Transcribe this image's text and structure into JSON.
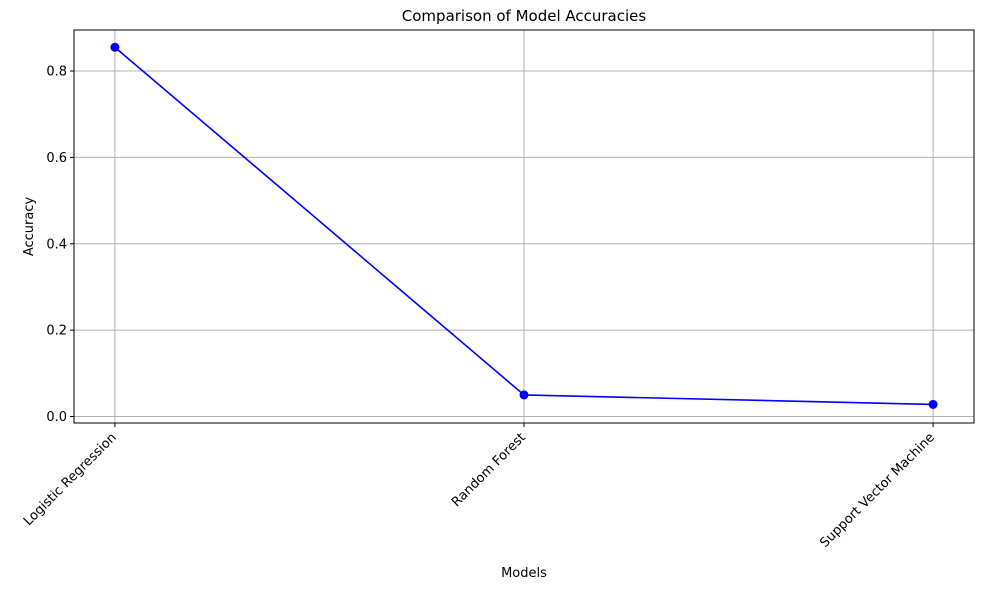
{
  "chart_data": {
    "type": "line",
    "title": "Comparison of Model Accuracies",
    "xlabel": "Models",
    "ylabel": "Accuracy",
    "categories": [
      "Logistic Regression",
      "Random Forest",
      "Support Vector Machine"
    ],
    "series": [
      {
        "values": [
          0.855,
          0.05,
          0.028
        ],
        "color": "#0000ff",
        "marker": "circle"
      }
    ],
    "ylim": [
      -0.015,
      0.895
    ],
    "yticks": [
      0.0,
      0.2,
      0.4,
      0.6,
      0.8
    ],
    "ytick_labels": [
      "0.0",
      "0.2",
      "0.4",
      "0.6",
      "0.8"
    ],
    "grid": true,
    "grid_color": "#b0b0b0",
    "xtick_rotation": 45
  }
}
